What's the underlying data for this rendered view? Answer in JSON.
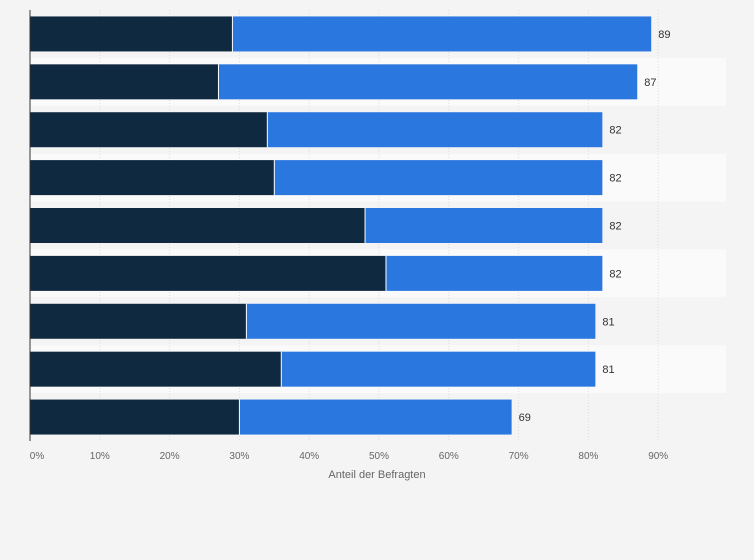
{
  "chart_data": {
    "type": "bar",
    "orientation": "horizontal",
    "stacked": true,
    "categories": [
      "",
      "",
      "",
      "",
      "",
      "",
      "",
      "",
      ""
    ],
    "series": [
      {
        "values": [
          29,
          27,
          34,
          35,
          48,
          51,
          31,
          36,
          30
        ]
      },
      {
        "values": [
          60,
          60,
          48,
          47,
          34,
          31,
          50,
          45,
          39
        ]
      }
    ],
    "totals": [
      89,
      87,
      82,
      82,
      82,
      82,
      81,
      81,
      69
    ],
    "data_labels": [
      "89",
      "87",
      "82",
      "82",
      "82",
      "82",
      "81",
      "81",
      "69"
    ],
    "xlabel": "Anteil der Befragten",
    "xlim": [
      0,
      100
    ],
    "x_ticks": [
      "0%",
      "10%",
      "20%",
      "30%",
      "40%",
      "50%",
      "60%",
      "70%",
      "80%",
      "90%"
    ],
    "grid": true,
    "legend": "none",
    "colors": {
      "series": [
        "#0f2a40",
        "#2b77e0"
      ],
      "background": "#f4f4f4",
      "band_alt": "#fafafa",
      "grid": "#dddddd",
      "axis": "#333333"
    }
  }
}
